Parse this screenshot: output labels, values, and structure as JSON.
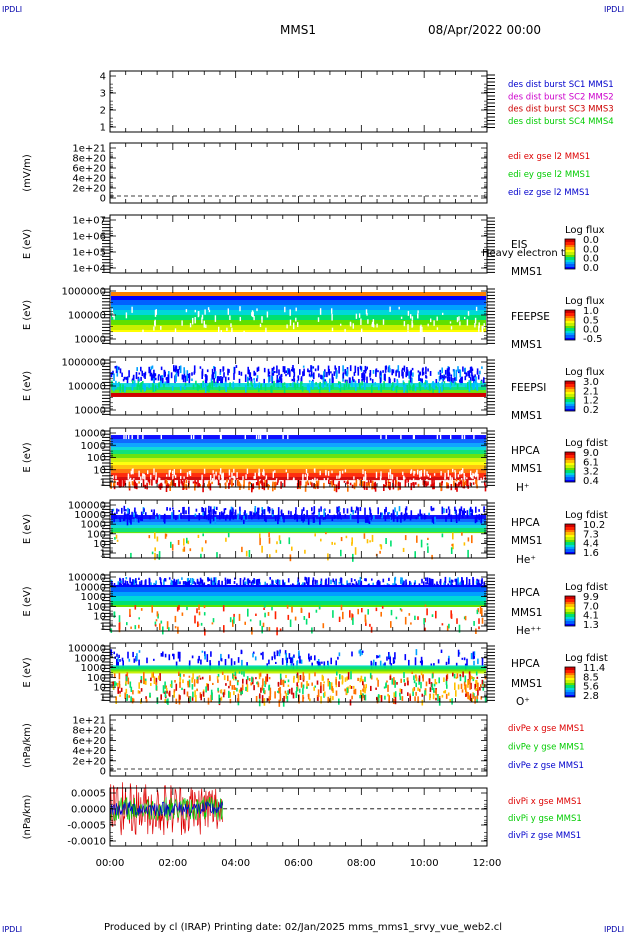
{
  "corner_label": "IPDLI",
  "header": {
    "spacecraft": "MMS1",
    "datetime": "08/Apr/2022 00:00"
  },
  "footer": {
    "text": "Produced by cl (IRAP)   Printing date: 02/Jan/2025   mms_mms1_srvy_vue_web2.cl"
  },
  "colors": {
    "mms1": "#0000cc",
    "mms2": "#cc00cc",
    "mms3": "#cc0000",
    "mms4": "#00cc00",
    "red": "#dd0000",
    "green": "#00cc00",
    "blue": "#0000cc"
  },
  "chart_data": [
    {
      "type": "line",
      "id": "des-dist",
      "ylabel": "",
      "yticks": [
        "4",
        "3",
        "2",
        "1"
      ],
      "ylim": [
        0.6,
        4.4
      ],
      "legend": [
        {
          "name": "des dist burst SC1 MMS1",
          "color": "#0000cc"
        },
        {
          "name": "des dist burst SC2 MMS2",
          "color": "#cc00cc"
        },
        {
          "name": "des dist burst SC3 MMS3",
          "color": "#cc0000"
        },
        {
          "name": "des dist burst SC4 MMS4",
          "color": "#00cc00"
        }
      ],
      "series": []
    },
    {
      "type": "line",
      "id": "edi",
      "ylabel": "(mV/m)",
      "yticks": [
        "1e+21",
        "8e+20",
        "6e+20",
        "4e+20",
        "2e+20",
        "0"
      ],
      "legend": [
        {
          "name": "edi ex gse l2 MMS1",
          "color": "#dd0000"
        },
        {
          "name": "edi ey gse l2 MMS1",
          "color": "#00cc00"
        },
        {
          "name": "edi ez gse l2 MMS1",
          "color": "#0000cc"
        }
      ],
      "series": []
    },
    {
      "type": "heatmap",
      "id": "eis",
      "ylabel": "E (eV)",
      "yticks": [
        "1e+07",
        "1e+06",
        "1e+05",
        "1e+04"
      ],
      "labels": [
        "EIS",
        "MMS1"
      ],
      "overlay_text": "Heavy electron to",
      "colorbar": {
        "title": "Log flux",
        "ticks": [
          "0.0",
          "0.0",
          "0.0",
          "0.0"
        ]
      }
    },
    {
      "type": "heatmap",
      "id": "feepse",
      "ylabel": "E (eV)",
      "yticks": [
        "1000000",
        "100000",
        "10000"
      ],
      "ylim": [
        10000,
        1000000
      ],
      "labels": [
        "FEEPSE",
        "MMS1"
      ],
      "colorbar": {
        "title": "Log flux",
        "ticks": [
          "1.0",
          "0.5",
          "0.0",
          "-0.5"
        ]
      }
    },
    {
      "type": "heatmap",
      "id": "feepsi",
      "ylabel": "E (eV)",
      "yticks": [
        "1000000",
        "100000",
        "10000"
      ],
      "ylim": [
        10000,
        1000000
      ],
      "labels": [
        "FEEPSI",
        "MMS1"
      ],
      "colorbar": {
        "title": "Log flux",
        "ticks": [
          "3.0",
          "2.1",
          "1.2",
          "0.2"
        ]
      }
    },
    {
      "type": "heatmap",
      "id": "hpca-h",
      "ylabel": "E (eV)",
      "yticks": [
        "10000",
        "1000",
        "100",
        "10",
        "1"
      ],
      "ylim": [
        1,
        30000
      ],
      "labels": [
        "HPCA",
        "MMS1",
        "H⁺"
      ],
      "colorbar": {
        "title": "Log fdist",
        "ticks": [
          "9.0",
          "6.1",
          "3.2",
          "0.4"
        ]
      }
    },
    {
      "type": "heatmap",
      "id": "hpca-he",
      "ylabel": "E (eV)",
      "yticks": [
        "100000",
        "10000",
        "1000",
        "100",
        "10",
        "1"
      ],
      "ylim": [
        1,
        100000
      ],
      "labels": [
        "HPCA",
        "MMS1",
        "He⁺"
      ],
      "colorbar": {
        "title": "Log fdist",
        "ticks": [
          "10.2",
          "7.3",
          "4.4",
          "1.6"
        ]
      }
    },
    {
      "type": "heatmap",
      "id": "hpca-hepp",
      "ylabel": "E (eV)",
      "yticks": [
        "100000",
        "10000",
        "1000",
        "100",
        "10",
        "1"
      ],
      "ylim": [
        1,
        100000
      ],
      "labels": [
        "HPCA",
        "MMS1",
        "He⁺⁺"
      ],
      "colorbar": {
        "title": "Log fdist",
        "ticks": [
          "9.9",
          "7.0",
          "4.1",
          "1.3"
        ]
      }
    },
    {
      "type": "heatmap",
      "id": "hpca-o",
      "ylabel": "E (eV)",
      "yticks": [
        "100000",
        "10000",
        "1000",
        "100",
        "10",
        "1"
      ],
      "ylim": [
        1,
        100000
      ],
      "labels": [
        "HPCA",
        "MMS1",
        "O⁺"
      ],
      "colorbar": {
        "title": "Log fdist",
        "ticks": [
          "11.4",
          "8.5",
          "5.6",
          "2.8"
        ]
      }
    },
    {
      "type": "line",
      "id": "divpe",
      "ylabel": "(nPa/km)",
      "yticks": [
        "1e+21",
        "8e+20",
        "6e+20",
        "4e+20",
        "2e+20",
        "0"
      ],
      "legend": [
        {
          "name": "divPe x gse MMS1",
          "color": "#dd0000"
        },
        {
          "name": "divPe y gse MMS1",
          "color": "#00cc00"
        },
        {
          "name": "divPe z gse MMS1",
          "color": "#0000cc"
        }
      ],
      "series": []
    },
    {
      "type": "line",
      "id": "divpi",
      "ylabel": "(nPa/km)",
      "yticks": [
        "0.0005",
        "0.0000",
        "-0.0005",
        "-0.0010"
      ],
      "ylim": [
        -0.00125,
        0.0007
      ],
      "legend": [
        {
          "name": "divPi x gse MMS1",
          "color": "#dd0000"
        },
        {
          "name": "divPi y gse MMS1",
          "color": "#00cc00"
        },
        {
          "name": "divPi z gse MMS1",
          "color": "#0000cc"
        }
      ],
      "series": [
        {
          "name": "divPi x gse MMS1",
          "color": "#dd0000",
          "x_range_hours": [
            0.0,
            3.6
          ],
          "mean": 0.0,
          "spread": 0.0009
        },
        {
          "name": "divPi y gse MMS1",
          "color": "#00cc00",
          "x_range_hours": [
            0.0,
            3.6
          ],
          "mean": 0.0,
          "spread": 0.0004
        },
        {
          "name": "divPi z gse MMS1",
          "color": "#0000cc",
          "x_range_hours": [
            0.0,
            3.6
          ],
          "mean": 0.0,
          "spread": 0.00025
        }
      ]
    }
  ],
  "xaxis": {
    "ticks": [
      "00:00",
      "02:00",
      "04:00",
      "06:00",
      "08:00",
      "10:00",
      "12:00"
    ],
    "xlim_hours": [
      0,
      12
    ]
  }
}
